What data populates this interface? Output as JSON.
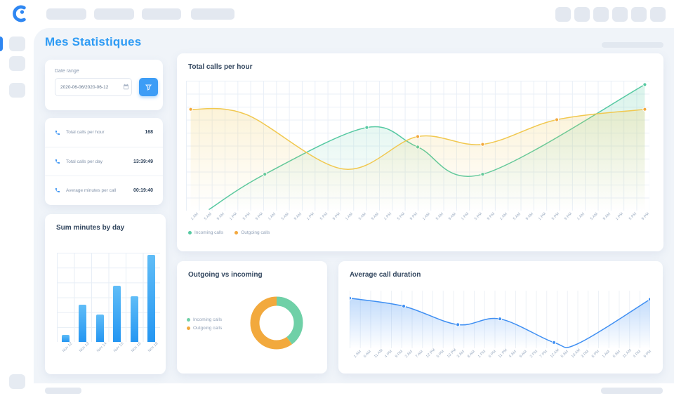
{
  "page": {
    "title": "Mes Statistiques"
  },
  "icons": {
    "logo": "phone-logo-icon",
    "stat": "phone-icon",
    "date": "calendar-icon",
    "filter": "funnel-icon"
  },
  "filters": {
    "label": "Date range",
    "value": "2020-06-06/2020-06-12"
  },
  "stats": {
    "items": [
      {
        "label": "Total calls per hour",
        "value": "168"
      },
      {
        "label": "Total calls per day",
        "value": "13:39:49"
      },
      {
        "label": "Average minutes per call",
        "value": "00:19:40"
      }
    ]
  },
  "chart_data": [
    {
      "id": "total_calls_per_hour",
      "type": "line",
      "title": "Total calls per hour",
      "grid": "both",
      "ylim": [
        0,
        100
      ],
      "legend_position": "bottom-left",
      "x_labels": [
        "1 AM",
        "5 AM",
        "9 AM",
        "1 PM",
        "5 PM",
        "9 PM",
        "1 AM",
        "5 AM",
        "9 AM",
        "1 PM",
        "5 PM",
        "9 PM",
        "1 AM",
        "5 AM",
        "9 AM",
        "1 PM",
        "5 PM",
        "9 PM",
        "1 AM",
        "5 AM",
        "9 AM",
        "1 PM",
        "5 PM",
        "9 PM",
        "1 AM",
        "5 AM",
        "9 AM",
        "1 PM",
        "5 PM",
        "9 PM",
        "1 AM",
        "5 AM",
        "9 AM",
        "1 PM",
        "5 PM",
        "9 PM"
      ],
      "series": [
        {
          "name": "Incoming calls",
          "color": "#56c9a2",
          "fill_opacity": 0.22,
          "points": [
            [
              5,
              1
            ],
            [
              17,
              28
            ],
            [
              39,
              64
            ],
            [
              50,
              49
            ],
            [
              64,
              28
            ],
            [
              99,
              97
            ]
          ],
          "markers": [
            1,
            2,
            3,
            4,
            5
          ]
        },
        {
          "name": "Outgoing calls",
          "color": "#f1c84f",
          "marker_color": "#f3a83e",
          "fill_opacity": 0.22,
          "points": [
            [
              1,
              78
            ],
            [
              13,
              74
            ],
            [
              34,
              32
            ],
            [
              50,
              57
            ],
            [
              64,
              51
            ],
            [
              80,
              70
            ],
            [
              99,
              78
            ]
          ],
          "markers": [
            0,
            3,
            4,
            5,
            6
          ]
        }
      ]
    },
    {
      "id": "sum_minutes_by_day",
      "type": "bar",
      "title": "Sum minutes by day",
      "categories": [
        "Nov 12",
        "Nov 13",
        "Nov 14",
        "Nov 15",
        "Nov 16",
        "Nov 18"
      ],
      "values": [
        8,
        42,
        31,
        63,
        51,
        98
      ],
      "ylim": [
        0,
        100
      ],
      "bar_color_top": "#60bdf7",
      "bar_color_bottom": "#2496f2"
    },
    {
      "id": "outgoing_vs_incoming",
      "type": "pie",
      "title": "Outgoing vs incoming",
      "slices": [
        {
          "label": "Incoming calls",
          "value": 40,
          "color": "#6fd0a7"
        },
        {
          "label": "Outgoing calls",
          "value": 60,
          "color": "#f2a93d"
        }
      ],
      "legend_position": "left"
    },
    {
      "id": "average_call_duration",
      "type": "line",
      "title": "Average call duration",
      "grid": "vertical",
      "ylim": [
        0,
        100
      ],
      "x_labels": [
        "1 AM",
        "6 AM",
        "11 AM",
        "4 PM",
        "9 PM",
        "2 AM",
        "7 AM",
        "12 PM",
        "5 PM",
        "10 PM",
        "3 AM",
        "8 AM",
        "1 PM",
        "6 PM",
        "11 PM",
        "4 AM",
        "9 AM",
        "2 PM",
        "7 PM",
        "12 AM",
        "5 AM",
        "10 AM",
        "3 PM",
        "8 PM",
        "1 AM",
        "6 AM",
        "11 AM",
        "4 PM",
        "9 PM"
      ],
      "series": [
        {
          "name": "Average call duration",
          "color": "#3f8ff2",
          "fill_opacity": 0.32,
          "points": [
            [
              0,
              87
            ],
            [
              18,
              73
            ],
            [
              36,
              41
            ],
            [
              50,
              51
            ],
            [
              68,
              10
            ],
            [
              76,
              8
            ],
            [
              100,
              85
            ]
          ],
          "markers": [
            0,
            1,
            2,
            3,
            4,
            6
          ]
        }
      ]
    }
  ]
}
